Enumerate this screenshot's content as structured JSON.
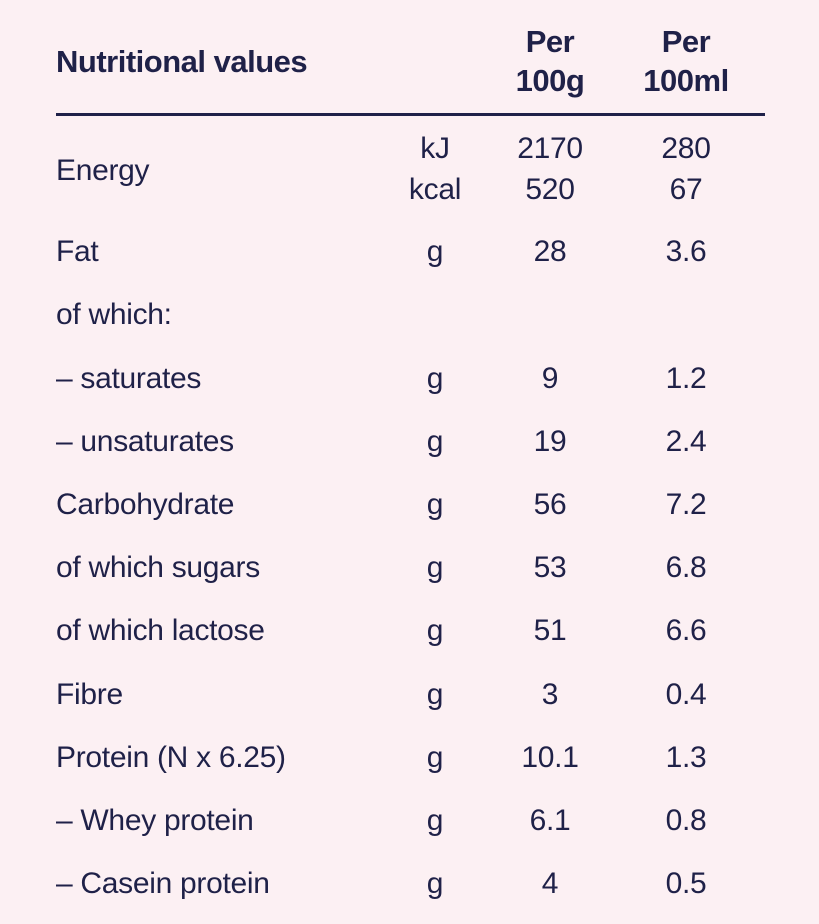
{
  "table": {
    "title": "Nutritional values",
    "col_100g": [
      "Per",
      "100g"
    ],
    "col_100ml": [
      "Per",
      "100ml"
    ],
    "energy": {
      "label": "Energy",
      "units": [
        "kJ",
        "kcal"
      ],
      "per_100g": [
        "2170",
        "520"
      ],
      "per_100ml": [
        "280",
        "67"
      ]
    },
    "rows": [
      {
        "label": "Fat",
        "unit": "g",
        "per_100g": "28",
        "per_100ml": "3.6"
      },
      {
        "label": "of which:",
        "unit": "",
        "per_100g": "",
        "per_100ml": ""
      },
      {
        "label": "– saturates",
        "unit": "g",
        "per_100g": "9",
        "per_100ml": "1.2"
      },
      {
        "label": "– unsaturates",
        "unit": "g",
        "per_100g": "19",
        "per_100ml": "2.4"
      },
      {
        "label": "Carbohydrate",
        "unit": "g",
        "per_100g": "56",
        "per_100ml": "7.2"
      },
      {
        "label": "of which sugars",
        "unit": "g",
        "per_100g": "53",
        "per_100ml": "6.8"
      },
      {
        "label": "of which lactose",
        "unit": "g",
        "per_100g": "51",
        "per_100ml": "6.6"
      },
      {
        "label": "Fibre",
        "unit": "g",
        "per_100g": "3",
        "per_100ml": "0.4"
      },
      {
        "label": "Protein (N x 6.25)",
        "unit": "g",
        "per_100g": "10.1",
        "per_100ml": "1.3"
      },
      {
        "label": "– Whey protein",
        "unit": "g",
        "per_100g": "6.1",
        "per_100ml": "0.8"
      },
      {
        "label": "– Casein protein",
        "unit": "g",
        "per_100g": "4",
        "per_100ml": "0.5"
      }
    ]
  },
  "colors": {
    "background": "#fcf0f3",
    "text": "#1f2148"
  }
}
